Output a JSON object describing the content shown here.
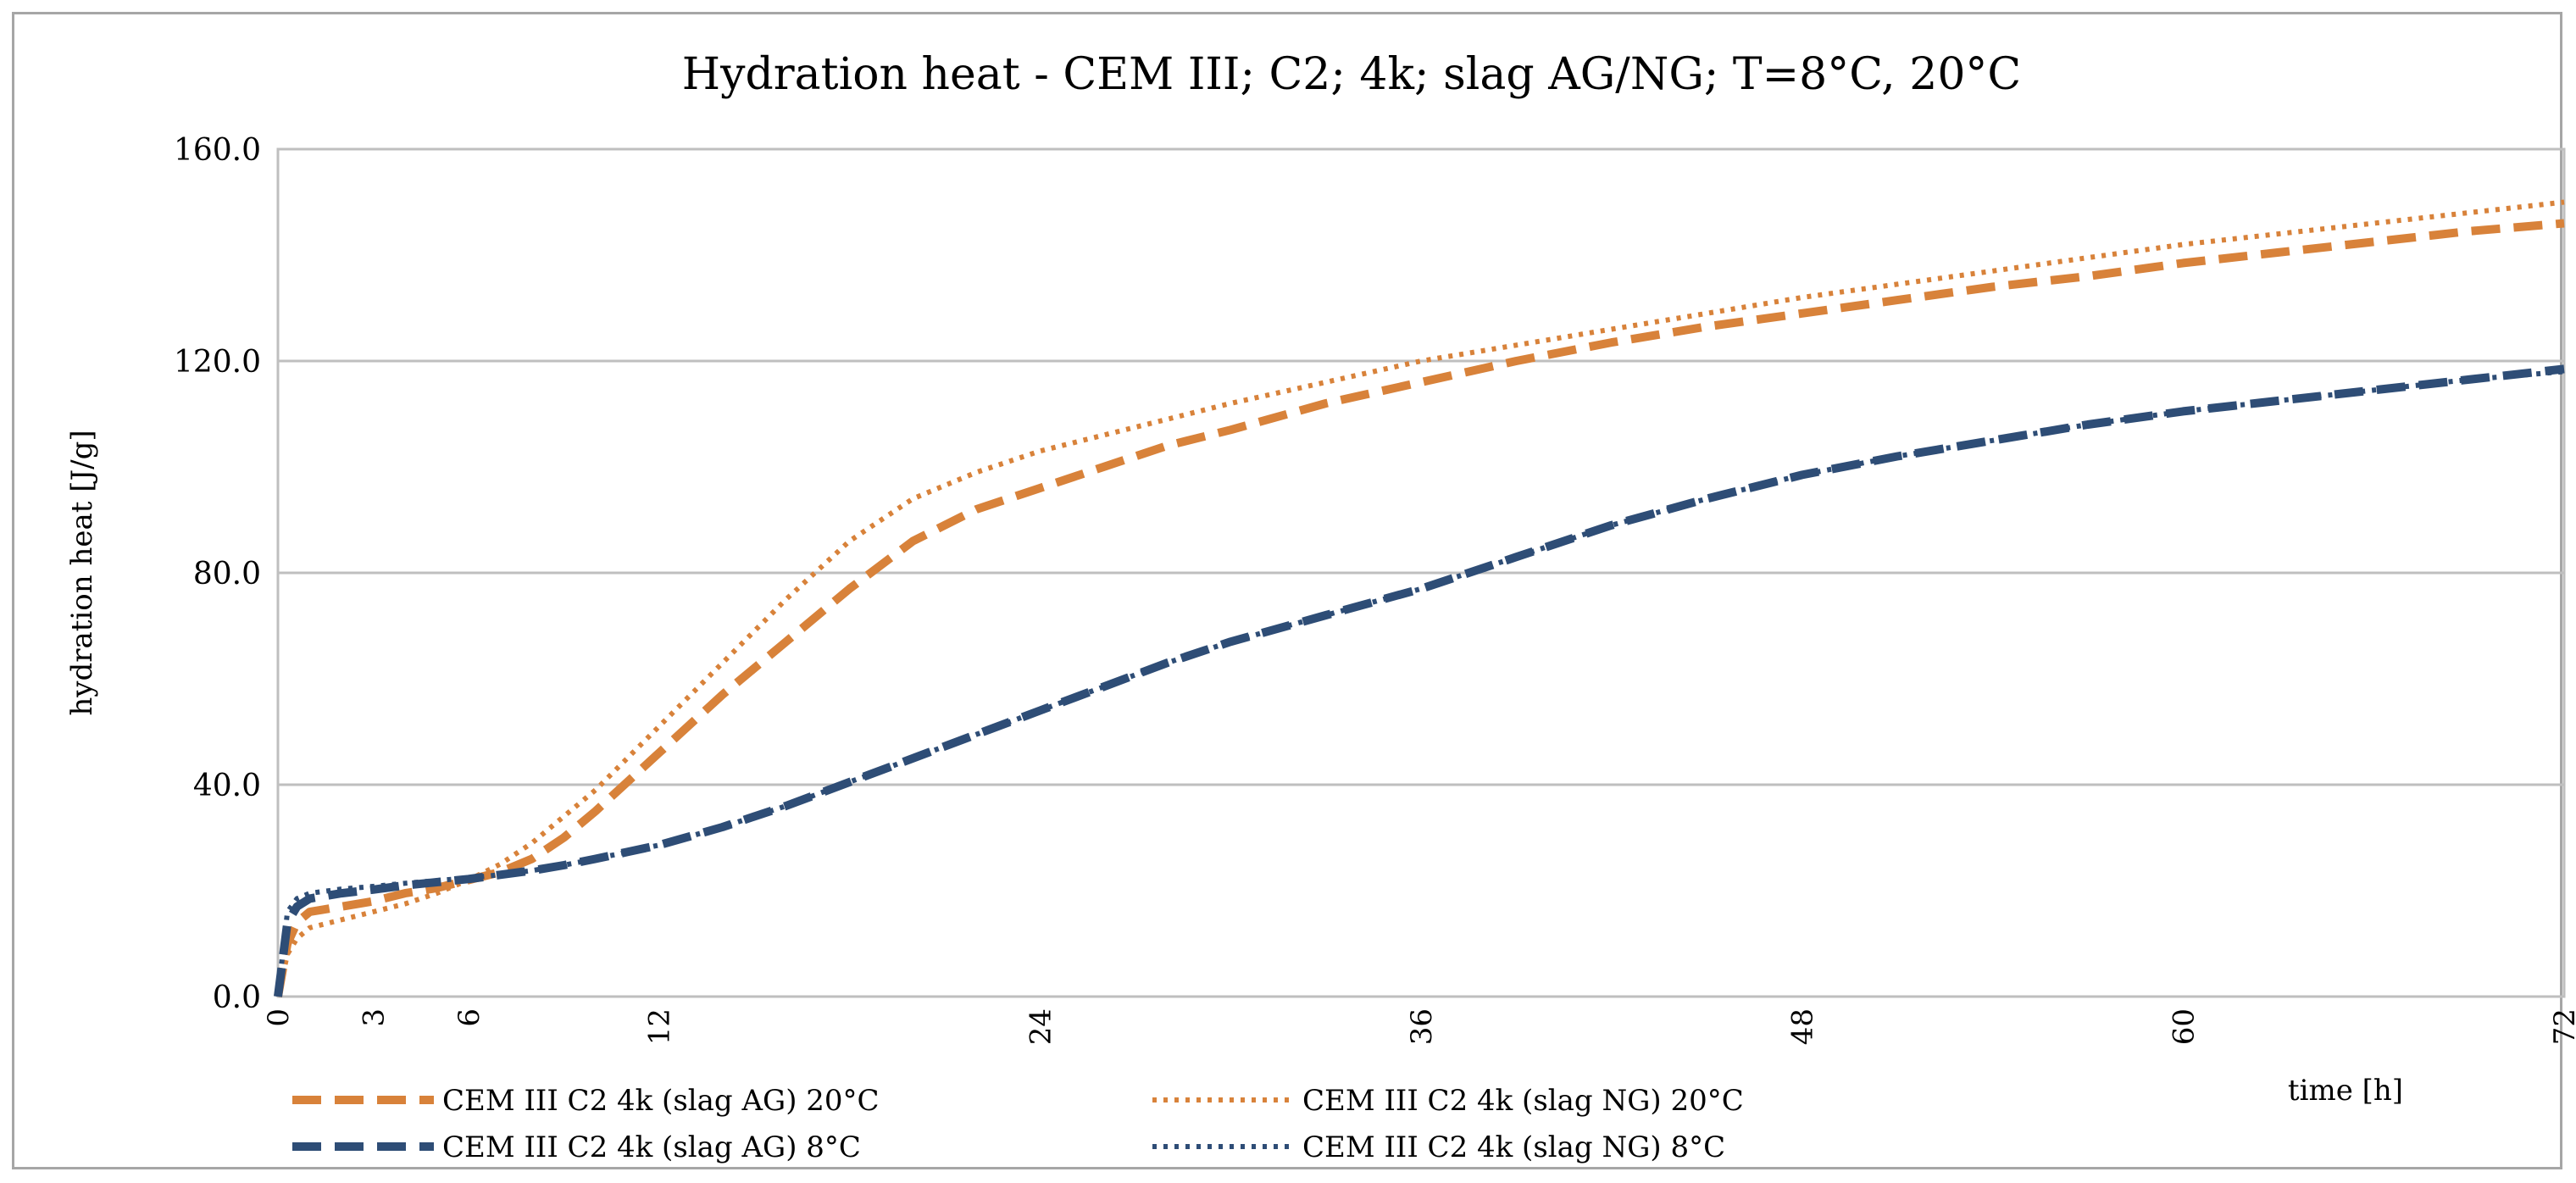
{
  "chart_data": {
    "type": "line",
    "title": "Hydration heat - CEM III; C2; 4k; slag AG/NG; T=8°C, 20°C",
    "xlabel": "time [h]",
    "ylabel": "hydration heat [J/g]",
    "xlim": [
      0,
      72
    ],
    "ylim": [
      0,
      160
    ],
    "x_ticks": [
      0,
      3,
      6,
      12,
      24,
      36,
      48,
      60,
      72
    ],
    "y_ticks": [
      0,
      40,
      80,
      120,
      160
    ],
    "y_tick_labels": [
      "0.0",
      "40.0",
      "80.0",
      "120.0",
      "160.0"
    ],
    "grid": "horizontal",
    "legend_position": "bottom",
    "colors": {
      "orange": "#d8823a",
      "blue": "#2e4d76",
      "grid": "#bfbfbf"
    },
    "series": [
      {
        "name": "CEM III C2 4k (slag AG) 20°C",
        "color": "#d8823a",
        "style": "dashed",
        "x": [
          0,
          0.3,
          0.6,
          1,
          2,
          3,
          4,
          5,
          6,
          7,
          8,
          9,
          10,
          11,
          12,
          14,
          16,
          18,
          20,
          22,
          24,
          26,
          28,
          30,
          33,
          36,
          39,
          42,
          45,
          48,
          51,
          54,
          57,
          60,
          63,
          66,
          69,
          72
        ],
        "y": [
          0,
          10,
          14,
          16,
          17,
          18,
          19.5,
          20.5,
          22,
          23.5,
          26,
          30,
          35,
          40.5,
          46,
          57,
          67,
          77,
          86,
          92,
          96,
          100,
          104,
          107,
          112,
          116,
          120,
          123.5,
          126.5,
          129,
          131.5,
          134,
          136,
          138.5,
          140.5,
          142.5,
          144.5,
          146
        ]
      },
      {
        "name": "CEM III C2 4k (slag NG) 20°C",
        "color": "#d8823a",
        "style": "dotted",
        "x": [
          0,
          0.3,
          0.6,
          1,
          2,
          3,
          4,
          5,
          6,
          7,
          8,
          9,
          10,
          11,
          12,
          14,
          16,
          18,
          20,
          22,
          24,
          26,
          28,
          30,
          33,
          36,
          39,
          42,
          45,
          48,
          51,
          54,
          57,
          60,
          63,
          66,
          69,
          72
        ],
        "y": [
          0,
          8,
          11,
          13,
          14.5,
          16,
          17.5,
          19.5,
          22,
          25,
          29,
          34,
          39,
          45,
          51,
          63,
          75,
          86,
          94,
          99,
          103,
          106,
          109,
          112,
          116,
          120,
          123,
          126,
          129,
          132,
          134.5,
          137,
          139.5,
          142,
          144,
          146,
          148,
          150
        ]
      },
      {
        "name": "CEM III C2 4k (slag AG) 8°C",
        "color": "#2e4d76",
        "style": "dashed",
        "x": [
          0,
          0.3,
          0.6,
          1,
          2,
          3,
          4,
          5,
          6,
          7,
          8,
          9,
          10,
          11,
          12,
          14,
          16,
          18,
          20,
          22,
          24,
          26,
          28,
          30,
          33,
          36,
          39,
          42,
          45,
          48,
          51,
          54,
          57,
          60,
          63,
          66,
          69,
          72
        ],
        "y": [
          0,
          14,
          17,
          18.5,
          19.5,
          20.2,
          21,
          21.6,
          22.2,
          23,
          23.8,
          24.8,
          26,
          27.3,
          28.6,
          32,
          36,
          40.5,
          45,
          49.5,
          54,
          58.5,
          63,
          67,
          72,
          77,
          83,
          89,
          94,
          98.5,
          102,
          105,
          108,
          110.5,
          112.5,
          114.5,
          116.5,
          118.5
        ]
      },
      {
        "name": "CEM III C2 4k (slag NG) 8°C",
        "color": "#2e4d76",
        "style": "dotted",
        "x": [
          0,
          0.3,
          0.6,
          1,
          2,
          3,
          4,
          5,
          6,
          7,
          8,
          9,
          10,
          11,
          12,
          14,
          16,
          18,
          20,
          22,
          24,
          26,
          28,
          30,
          33,
          36,
          39,
          42,
          45,
          48,
          51,
          54,
          57,
          60,
          63,
          66,
          69,
          72
        ],
        "y": [
          0,
          16,
          18.5,
          19.5,
          20.3,
          20.8,
          21.4,
          21.9,
          22.4,
          23,
          23.8,
          24.8,
          26,
          27.3,
          28.6,
          32,
          36,
          40.5,
          45,
          49.5,
          54,
          58.5,
          63,
          67,
          72,
          77,
          83,
          89,
          94,
          98.5,
          102,
          105,
          108,
          110.5,
          112.5,
          114.5,
          116.5,
          118
        ]
      }
    ]
  }
}
